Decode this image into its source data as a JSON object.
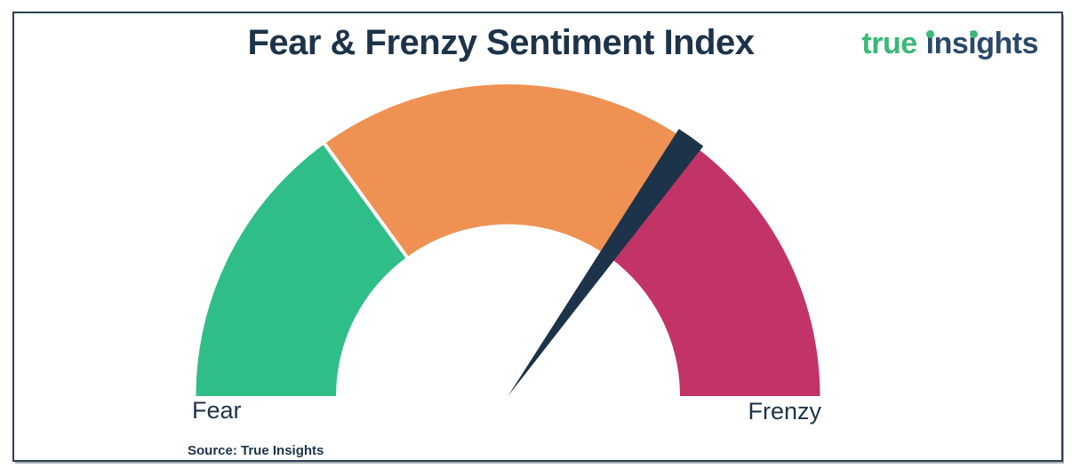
{
  "page": {
    "background": "#ffffff",
    "frame_border_color": "#2e4156"
  },
  "logo": {
    "word1": "true",
    "word2": "insights",
    "word1_color": "#3cb878",
    "word2_color": "#2c4a68",
    "i_dot_color": "#3cb878"
  },
  "footer": {
    "source_text": "Source: True Insights"
  },
  "colors": {
    "title_navy": "#1d3349",
    "needle_navy": "#1d3349",
    "fear_green": "#2fbe87",
    "mid_orange": "#ee9152",
    "frenzy_pink": "#c23367",
    "divider_white": "#ffffff"
  },
  "chart_data": {
    "type": "gauge",
    "title": "Fear & Frenzy Sentiment Index",
    "min_label": "Fear",
    "max_label": "Frenzy",
    "scale": {
      "min_pct": 0,
      "max_pct": 100,
      "start_angle_deg": 180,
      "end_angle_deg": 0,
      "shape": "semicircle-donut",
      "tick_labels": "none",
      "legend": "none"
    },
    "segments": [
      {
        "start_pct": 0,
        "end_pct": 30,
        "color": "#2fbe87"
      },
      {
        "start_pct": 30,
        "end_pct": 70,
        "color": "#ee9152"
      },
      {
        "start_pct": 70,
        "end_pct": 100,
        "color": "#c23367"
      }
    ],
    "needle": {
      "value_pct": 69.6,
      "color": "#1d3349"
    },
    "source": "Source: True Insights"
  }
}
